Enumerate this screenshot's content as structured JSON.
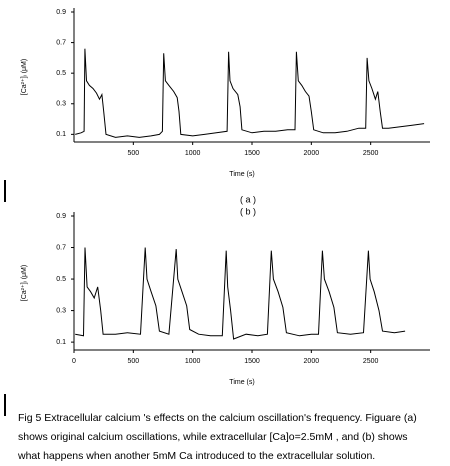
{
  "chart_data": [
    {
      "type": "line",
      "subtitle": "( a )",
      "x_label": "Time (s)",
      "y_label": "[Ca²⁺]ᵢ (μM)",
      "color": "#000000",
      "xlim": [
        0,
        3000
      ],
      "xticks": [
        500,
        1000,
        1500,
        2000,
        2500
      ],
      "ylim": [
        0.05,
        0.9
      ],
      "yticks": [
        0.1,
        0.3,
        0.5,
        0.7,
        0.9
      ],
      "x": [
        10,
        60,
        85,
        92,
        105,
        130,
        160,
        190,
        215,
        235,
        250,
        270,
        350,
        450,
        550,
        650,
        720,
        745,
        756,
        770,
        800,
        840,
        870,
        885,
        900,
        1000,
        1100,
        1200,
        1290,
        1303,
        1315,
        1340,
        1380,
        1400,
        1415,
        1500,
        1600,
        1700,
        1800,
        1862,
        1874,
        1890,
        1920,
        1950,
        1980,
        2000,
        2020,
        2100,
        2200,
        2300,
        2400,
        2458,
        2470,
        2485,
        2510,
        2540,
        2560,
        2580,
        2600,
        2650,
        2750,
        2850,
        2950
      ],
      "values": [
        0.1,
        0.11,
        0.12,
        0.66,
        0.45,
        0.42,
        0.4,
        0.37,
        0.33,
        0.36,
        0.25,
        0.1,
        0.08,
        0.09,
        0.08,
        0.09,
        0.1,
        0.12,
        0.63,
        0.45,
        0.42,
        0.38,
        0.34,
        0.25,
        0.1,
        0.09,
        0.1,
        0.11,
        0.12,
        0.64,
        0.45,
        0.4,
        0.36,
        0.28,
        0.13,
        0.11,
        0.12,
        0.12,
        0.13,
        0.13,
        0.64,
        0.45,
        0.42,
        0.38,
        0.35,
        0.25,
        0.13,
        0.11,
        0.11,
        0.12,
        0.14,
        0.14,
        0.6,
        0.45,
        0.4,
        0.33,
        0.38,
        0.25,
        0.14,
        0.14,
        0.15,
        0.16,
        0.17
      ]
    },
    {
      "type": "line",
      "subtitle": "( b )",
      "x_label": "Time (s)",
      "y_label": "[Ca²⁺]ᵢ (μM)",
      "color": "#000000",
      "xlim": [
        0,
        3000
      ],
      "xticks": [
        0,
        500,
        1000,
        1500,
        2000,
        2500
      ],
      "ylim": [
        0.05,
        0.9
      ],
      "yticks": [
        0.1,
        0.3,
        0.5,
        0.7,
        0.9
      ],
      "x": [
        10,
        80,
        93,
        110,
        140,
        170,
        200,
        225,
        245,
        350,
        450,
        560,
        600,
        615,
        650,
        690,
        720,
        800,
        861,
        875,
        910,
        950,
        975,
        1050,
        1150,
        1250,
        1283,
        1295,
        1320,
        1345,
        1450,
        1550,
        1630,
        1663,
        1680,
        1720,
        1760,
        1790,
        1900,
        2000,
        2060,
        2093,
        2110,
        2150,
        2190,
        2220,
        2330,
        2440,
        2481,
        2495,
        2530,
        2570,
        2600,
        2700,
        2790
      ],
      "values": [
        0.15,
        0.14,
        0.7,
        0.45,
        0.42,
        0.38,
        0.45,
        0.3,
        0.15,
        0.15,
        0.16,
        0.15,
        0.7,
        0.5,
        0.42,
        0.33,
        0.17,
        0.15,
        0.69,
        0.5,
        0.42,
        0.33,
        0.18,
        0.15,
        0.14,
        0.14,
        0.68,
        0.45,
        0.3,
        0.12,
        0.15,
        0.14,
        0.15,
        0.68,
        0.5,
        0.42,
        0.32,
        0.16,
        0.14,
        0.15,
        0.15,
        0.68,
        0.5,
        0.42,
        0.32,
        0.16,
        0.15,
        0.16,
        0.68,
        0.5,
        0.42,
        0.3,
        0.17,
        0.16,
        0.17
      ]
    }
  ],
  "caption": {
    "lines": [
      "Fig 5 Extracellular calcium 's effects on the calcium oscillation's frequency. Figuare (a)",
      "shows original  calcium oscillations, while extracellular [Ca]o=2.5mM , and (b) shows",
      "what  happens when  another 5mM Ca introduced to the extracellular solution."
    ]
  }
}
